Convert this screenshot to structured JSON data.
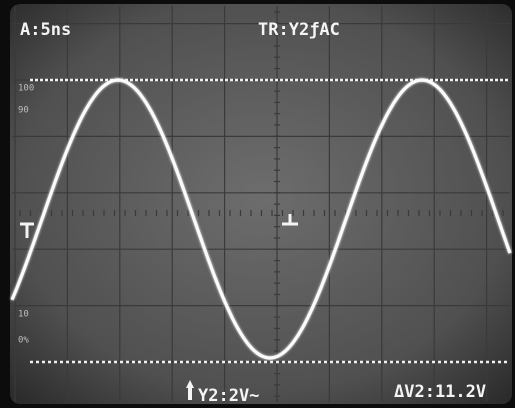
{
  "header": {
    "timebase": "A:5ns",
    "trigger": "TR:Y2ƒAC"
  },
  "footer": {
    "channel": "Y2:2V~",
    "delta": "ΔV2:11.2V"
  },
  "graticule_labels": [
    "100",
    "90",
    "10",
    "0%"
  ]
}
